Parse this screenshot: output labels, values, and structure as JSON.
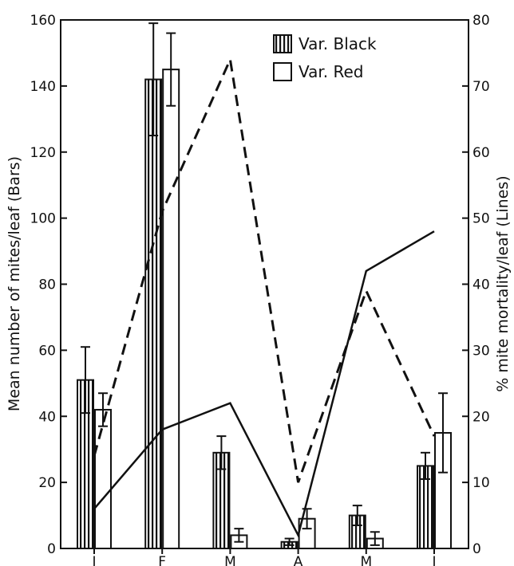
{
  "chart_data": {
    "type": "bar",
    "categories": [
      "J",
      "F",
      "M",
      "A",
      "M",
      "J"
    ],
    "y_left": {
      "label": "Mean number of mites/leaf (Bars)",
      "range": [
        0,
        160
      ],
      "ticks": [
        0,
        20,
        40,
        60,
        80,
        100,
        120,
        140,
        160
      ]
    },
    "y_right": {
      "label": "% mite mortality/leaf (Lines)",
      "range": [
        0,
        80
      ],
      "ticks": [
        0,
        10,
        20,
        30,
        40,
        50,
        60,
        70,
        80
      ]
    },
    "legend": {
      "position": "top-right"
    },
    "bar_series": [
      {
        "name": "Var. Black",
        "pattern": "vertical-hatch",
        "values": [
          51,
          142,
          29,
          2,
          10,
          25
        ],
        "errors": [
          10,
          17,
          5,
          1,
          3,
          4
        ]
      },
      {
        "name": "Var. Red",
        "pattern": "white",
        "values": [
          42,
          145,
          4,
          9,
          3,
          35
        ],
        "errors": [
          5,
          11,
          2,
          3,
          2,
          12
        ]
      }
    ],
    "line_series": [
      {
        "style": "dashed",
        "values": [
          14,
          51,
          74,
          10,
          39,
          17
        ]
      },
      {
        "style": "solid",
        "values": [
          6,
          18,
          22,
          2,
          42,
          48
        ]
      }
    ]
  }
}
